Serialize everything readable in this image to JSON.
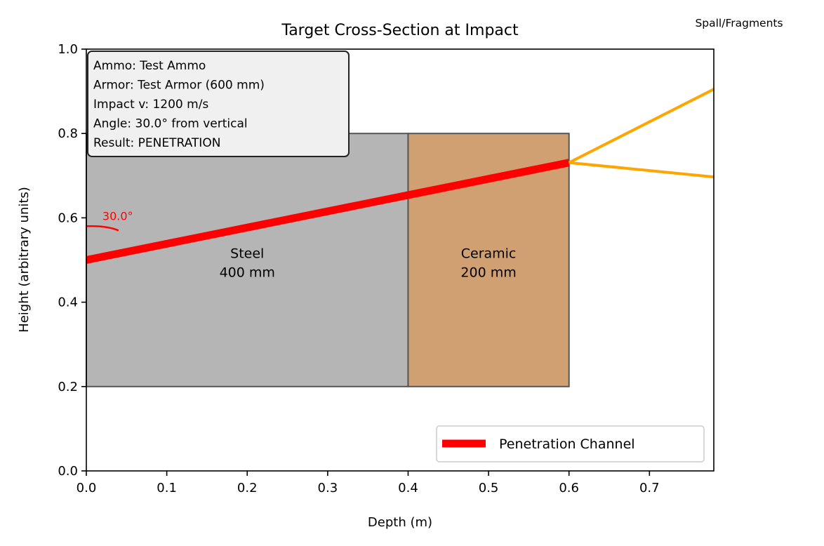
{
  "chart_data": {
    "type": "line",
    "title": "Target Cross-Section at Impact",
    "xlabel": "Depth (m)",
    "ylabel": "Height (arbitrary units)",
    "xlim": [
      0,
      0.78
    ],
    "ylim": [
      0,
      1.0
    ],
    "xticks": [
      "0.0",
      "0.1",
      "0.2",
      "0.3",
      "0.4",
      "0.5",
      "0.6",
      "0.7"
    ],
    "yticks": [
      "0.0",
      "0.2",
      "0.4",
      "0.6",
      "0.8",
      "1.0"
    ],
    "grid": false,
    "layers": [
      {
        "name": "Steel",
        "thickness": "400 mm",
        "x_start": 0.0,
        "x_end": 0.4,
        "y_bottom": 0.2,
        "y_top": 0.8,
        "color": "#b5b5b5"
      },
      {
        "name": "Ceramic",
        "thickness": "200 mm",
        "x_start": 0.4,
        "x_end": 0.6,
        "y_bottom": 0.2,
        "y_top": 0.8,
        "color": "#d0a073"
      }
    ],
    "series": [
      {
        "name": "Penetration Channel",
        "color": "#ff0000",
        "x": [
          0.0,
          0.6
        ],
        "y": [
          0.5,
          0.7309
        ]
      }
    ],
    "fragments": [
      {
        "color": "#ffa500",
        "x": [
          0.6,
          0.78
        ],
        "y": [
          0.7309,
          0.905
        ]
      },
      {
        "color": "#ffa500",
        "x": [
          0.6,
          0.78
        ],
        "y": [
          0.7309,
          0.697
        ]
      }
    ],
    "angle_annotation": {
      "label": "30.0°",
      "color": "#ff0000"
    },
    "fragments_label": "Spall/Fragments",
    "info_box": [
      "Ammo: Test Ammo",
      "Armor: Test Armor (600 mm)",
      "Impact v: 1200 m/s",
      "Angle: 30.0° from vertical",
      "Result: PENETRATION"
    ],
    "legend": {
      "placement": "lower-right",
      "entries": [
        "Penetration Channel"
      ]
    }
  }
}
